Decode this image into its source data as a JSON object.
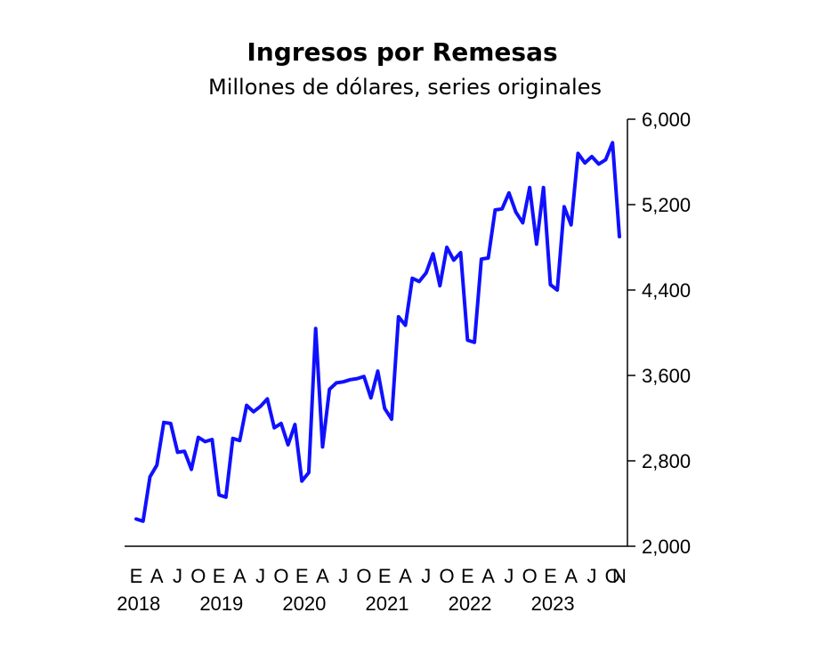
{
  "chart_data": {
    "type": "line",
    "title": "Ingresos por Remesas",
    "subtitle": "Millones de dólares, series originales",
    "xlabel": "",
    "ylabel": "",
    "ylim": [
      2000,
      6000
    ],
    "y_ticks": [
      "2,000",
      "2,800",
      "3,600",
      "4,400",
      "5,200",
      "6,000"
    ],
    "y_tick_values": [
      2000,
      2800,
      3600,
      4400,
      5200,
      6000
    ],
    "y_axis_side": "right",
    "grid": false,
    "x_month_labels": [
      "E",
      "A",
      "J",
      "O",
      "E",
      "A",
      "J",
      "O",
      "E",
      "A",
      "J",
      "O",
      "E",
      "A",
      "J",
      "O",
      "E",
      "A",
      "J",
      "O",
      "E",
      "A",
      "J",
      "O",
      "N"
    ],
    "x_year_labels": [
      "2018",
      "2019",
      "2020",
      "2021",
      "2022",
      "2023"
    ],
    "series": [
      {
        "name": "",
        "color": "#1010ff",
        "x": [
          "2018-01",
          "2018-02",
          "2018-03",
          "2018-04",
          "2018-05",
          "2018-06",
          "2018-07",
          "2018-08",
          "2018-09",
          "2018-10",
          "2018-11",
          "2018-12",
          "2019-01",
          "2019-02",
          "2019-03",
          "2019-04",
          "2019-05",
          "2019-06",
          "2019-07",
          "2019-08",
          "2019-09",
          "2019-10",
          "2019-11",
          "2019-12",
          "2020-01",
          "2020-02",
          "2020-03",
          "2020-04",
          "2020-05",
          "2020-06",
          "2020-07",
          "2020-08",
          "2020-09",
          "2020-10",
          "2020-11",
          "2020-12",
          "2021-01",
          "2021-02",
          "2021-03",
          "2021-04",
          "2021-05",
          "2021-06",
          "2021-07",
          "2021-08",
          "2021-09",
          "2021-10",
          "2021-11",
          "2021-12",
          "2022-01",
          "2022-02",
          "2022-03",
          "2022-04",
          "2022-05",
          "2022-06",
          "2022-07",
          "2022-08",
          "2022-09",
          "2022-10",
          "2022-11",
          "2022-12",
          "2023-01",
          "2023-02",
          "2023-03",
          "2023-04",
          "2023-05",
          "2023-06",
          "2023-07",
          "2023-08",
          "2023-09",
          "2023-10",
          "2023-11"
        ],
        "values": [
          2255,
          2235,
          2650,
          2760,
          3160,
          3150,
          2880,
          2890,
          2720,
          3020,
          2980,
          3000,
          2480,
          2460,
          3010,
          2990,
          3320,
          3260,
          3310,
          3380,
          3110,
          3150,
          2950,
          3140,
          2610,
          2690,
          4040,
          2930,
          3470,
          3530,
          3540,
          3560,
          3570,
          3590,
          3390,
          3640,
          3290,
          3190,
          4150,
          4070,
          4510,
          4480,
          4560,
          4740,
          4440,
          4800,
          4680,
          4750,
          3930,
          3910,
          4690,
          4700,
          5150,
          5160,
          5310,
          5130,
          5030,
          5360,
          4830,
          5360,
          4450,
          4400,
          5180,
          5010,
          5680,
          5590,
          5650,
          5580,
          5620,
          5780,
          4900
        ]
      }
    ]
  }
}
